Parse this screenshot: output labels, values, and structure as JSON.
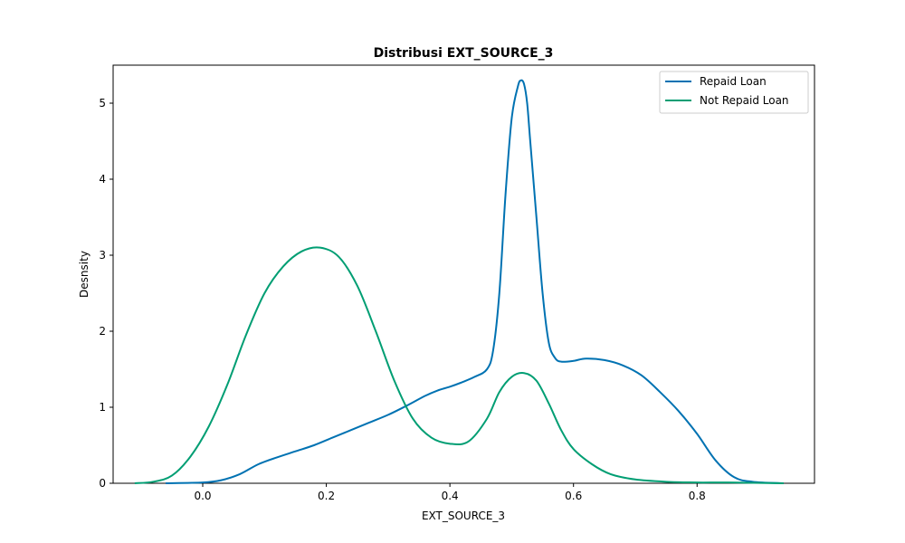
{
  "chart_data": {
    "type": "line",
    "title": "Distribusi EXT_SOURCE_3",
    "xlabel": "EXT_SOURCE_3",
    "ylabel": "Desnsity",
    "xlim": [
      -0.145,
      0.99
    ],
    "ylim": [
      0,
      5.5
    ],
    "xticks": [
      "0.0",
      "0.2",
      "0.4",
      "0.6",
      "0.8"
    ],
    "yticks": [
      "0",
      "1",
      "2",
      "3",
      "4",
      "5"
    ],
    "grid": false,
    "legend_position": "top-right",
    "series": [
      {
        "name": "Repaid Loan",
        "color": "#0072b2",
        "x": [
          -0.06,
          0.0,
          0.03,
          0.06,
          0.09,
          0.12,
          0.15,
          0.18,
          0.21,
          0.24,
          0.27,
          0.3,
          0.33,
          0.36,
          0.38,
          0.4,
          0.42,
          0.44,
          0.46,
          0.47,
          0.48,
          0.49,
          0.5,
          0.51,
          0.515,
          0.52,
          0.525,
          0.53,
          0.54,
          0.55,
          0.56,
          0.57,
          0.58,
          0.6,
          0.62,
          0.65,
          0.68,
          0.71,
          0.74,
          0.77,
          0.8,
          0.83,
          0.86,
          0.89,
          0.94
        ],
        "y": [
          0.0,
          0.01,
          0.04,
          0.12,
          0.25,
          0.34,
          0.42,
          0.5,
          0.6,
          0.7,
          0.8,
          0.9,
          1.02,
          1.15,
          1.22,
          1.27,
          1.33,
          1.4,
          1.5,
          1.75,
          2.5,
          3.8,
          4.8,
          5.22,
          5.3,
          5.25,
          5.0,
          4.5,
          3.5,
          2.5,
          1.85,
          1.65,
          1.6,
          1.61,
          1.64,
          1.62,
          1.55,
          1.42,
          1.2,
          0.95,
          0.65,
          0.3,
          0.08,
          0.02,
          0.0
        ]
      },
      {
        "name": "Not Repaid Loan",
        "color": "#009e73",
        "x": [
          -0.11,
          -0.08,
          -0.05,
          -0.02,
          0.01,
          0.04,
          0.07,
          0.1,
          0.13,
          0.16,
          0.19,
          0.22,
          0.25,
          0.28,
          0.31,
          0.34,
          0.37,
          0.4,
          0.43,
          0.46,
          0.48,
          0.5,
          0.52,
          0.54,
          0.56,
          0.58,
          0.6,
          0.63,
          0.66,
          0.7,
          0.75,
          0.8,
          0.85,
          0.94
        ],
        "y": [
          0.0,
          0.02,
          0.1,
          0.35,
          0.75,
          1.3,
          1.95,
          2.5,
          2.85,
          3.05,
          3.1,
          2.98,
          2.6,
          2.0,
          1.35,
          0.85,
          0.6,
          0.52,
          0.55,
          0.85,
          1.2,
          1.4,
          1.45,
          1.35,
          1.05,
          0.7,
          0.45,
          0.25,
          0.12,
          0.05,
          0.02,
          0.01,
          0.01,
          0.0
        ]
      }
    ]
  }
}
